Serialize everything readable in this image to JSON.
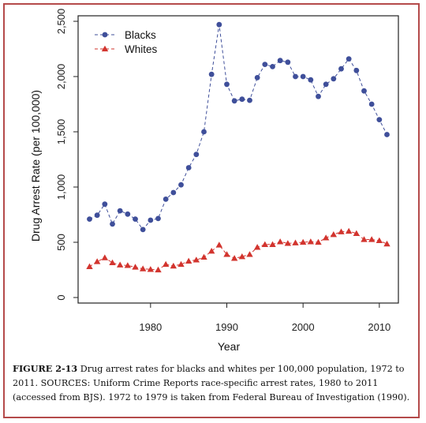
{
  "chart_data": {
    "type": "line",
    "xlabel": "Year",
    "ylabel": "Drug Arrest Rate (per 100,000)",
    "xlim": [
      1970.5,
      2012.5
    ],
    "ylim": [
      -50,
      2550
    ],
    "x_ticks": [
      1980,
      1990,
      2000,
      2010
    ],
    "x_tick_labels": [
      "1980",
      "1990",
      "2000",
      "2010"
    ],
    "y_ticks": [
      0,
      500,
      1000,
      1500,
      2000,
      2500
    ],
    "y_tick_labels": [
      "0",
      "500",
      "1,000",
      "1,500",
      "2,000",
      "2,500"
    ],
    "legend_position": "top-left",
    "grid": false,
    "x": [
      1972,
      1973,
      1974,
      1975,
      1976,
      1977,
      1978,
      1979,
      1980,
      1981,
      1982,
      1983,
      1984,
      1985,
      1986,
      1987,
      1988,
      1989,
      1990,
      1991,
      1992,
      1993,
      1994,
      1995,
      1996,
      1997,
      1998,
      1999,
      2000,
      2001,
      2002,
      2003,
      2004,
      2005,
      2006,
      2007,
      2008,
      2009,
      2010,
      2011
    ],
    "series": [
      {
        "name": "Blacks",
        "color": "#3f4f9a",
        "marker": "circle",
        "values": [
          710,
          745,
          845,
          665,
          785,
          755,
          710,
          615,
          700,
          715,
          890,
          950,
          1020,
          1175,
          1295,
          1500,
          2020,
          2470,
          1930,
          1780,
          1795,
          1785,
          1990,
          2110,
          2090,
          2145,
          2130,
          2000,
          2000,
          1970,
          1820,
          1930,
          1980,
          2070,
          2160,
          2055,
          1870,
          1750,
          1610,
          1475
        ]
      },
      {
        "name": "Whites",
        "color": "#d2342e",
        "marker": "triangle",
        "values": [
          280,
          325,
          360,
          315,
          295,
          290,
          275,
          260,
          255,
          250,
          300,
          285,
          300,
          330,
          340,
          365,
          420,
          475,
          390,
          355,
          370,
          390,
          455,
          480,
          480,
          505,
          490,
          495,
          500,
          505,
          500,
          540,
          570,
          595,
          600,
          580,
          525,
          525,
          515,
          485
        ]
      }
    ]
  },
  "caption": {
    "label": "FIGURE 2-13",
    "text": " Drug arrest rates for blacks and whites per 100,000 population, 1972 to 2011. SOURCES: Uniform Crime Reports race-specific arrest rates, 1980 to 2011 (accessed from BJS). 1972 to 1979 is taken from Federal Bureau of Investigation (1990)."
  }
}
